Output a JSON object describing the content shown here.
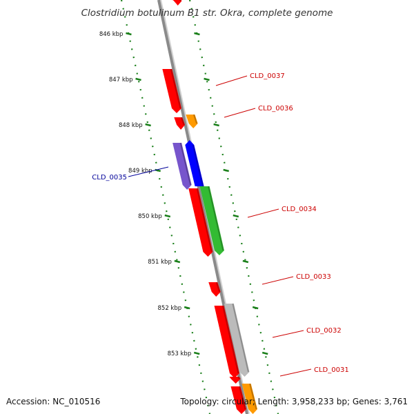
{
  "title": "Clostridium botulinum B1 str. Okra, complete genome",
  "accession": "Accession: NC_010516",
  "topology": "Topology: circular; Length: 3,958,233 bp; Genes: 3,761",
  "colors": {
    "backbone": "#8a8a8a",
    "tick": "#1a7f1a",
    "gene_red": "#ff0000",
    "gene_orange": "#ff9a00",
    "gene_blue": "#0000ff",
    "gene_purple": "#7755cc",
    "gene_green": "#33bb33",
    "gene_gray": "#bbbbbb",
    "label_red": "#cc0000",
    "label_blue": "#000099"
  },
  "ticks": [
    {
      "label": "846 kbp"
    },
    {
      "label": "847 kbp"
    },
    {
      "label": "848 kbp"
    },
    {
      "label": "849 kbp"
    },
    {
      "label": "850 kbp"
    },
    {
      "label": "851 kbp"
    },
    {
      "label": "852 kbp"
    },
    {
      "label": "853 kbp"
    }
  ],
  "gene_labels": [
    {
      "id": "CLD_0037",
      "color": "#cc0000"
    },
    {
      "id": "CLD_0036",
      "color": "#cc0000"
    },
    {
      "id": "CLD_0035",
      "color": "#000099"
    },
    {
      "id": "CLD_0034",
      "color": "#cc0000"
    },
    {
      "id": "CLD_0033",
      "color": "#cc0000"
    },
    {
      "id": "CLD_0032",
      "color": "#cc0000"
    },
    {
      "id": "CLD_0031",
      "color": "#cc0000"
    }
  ]
}
